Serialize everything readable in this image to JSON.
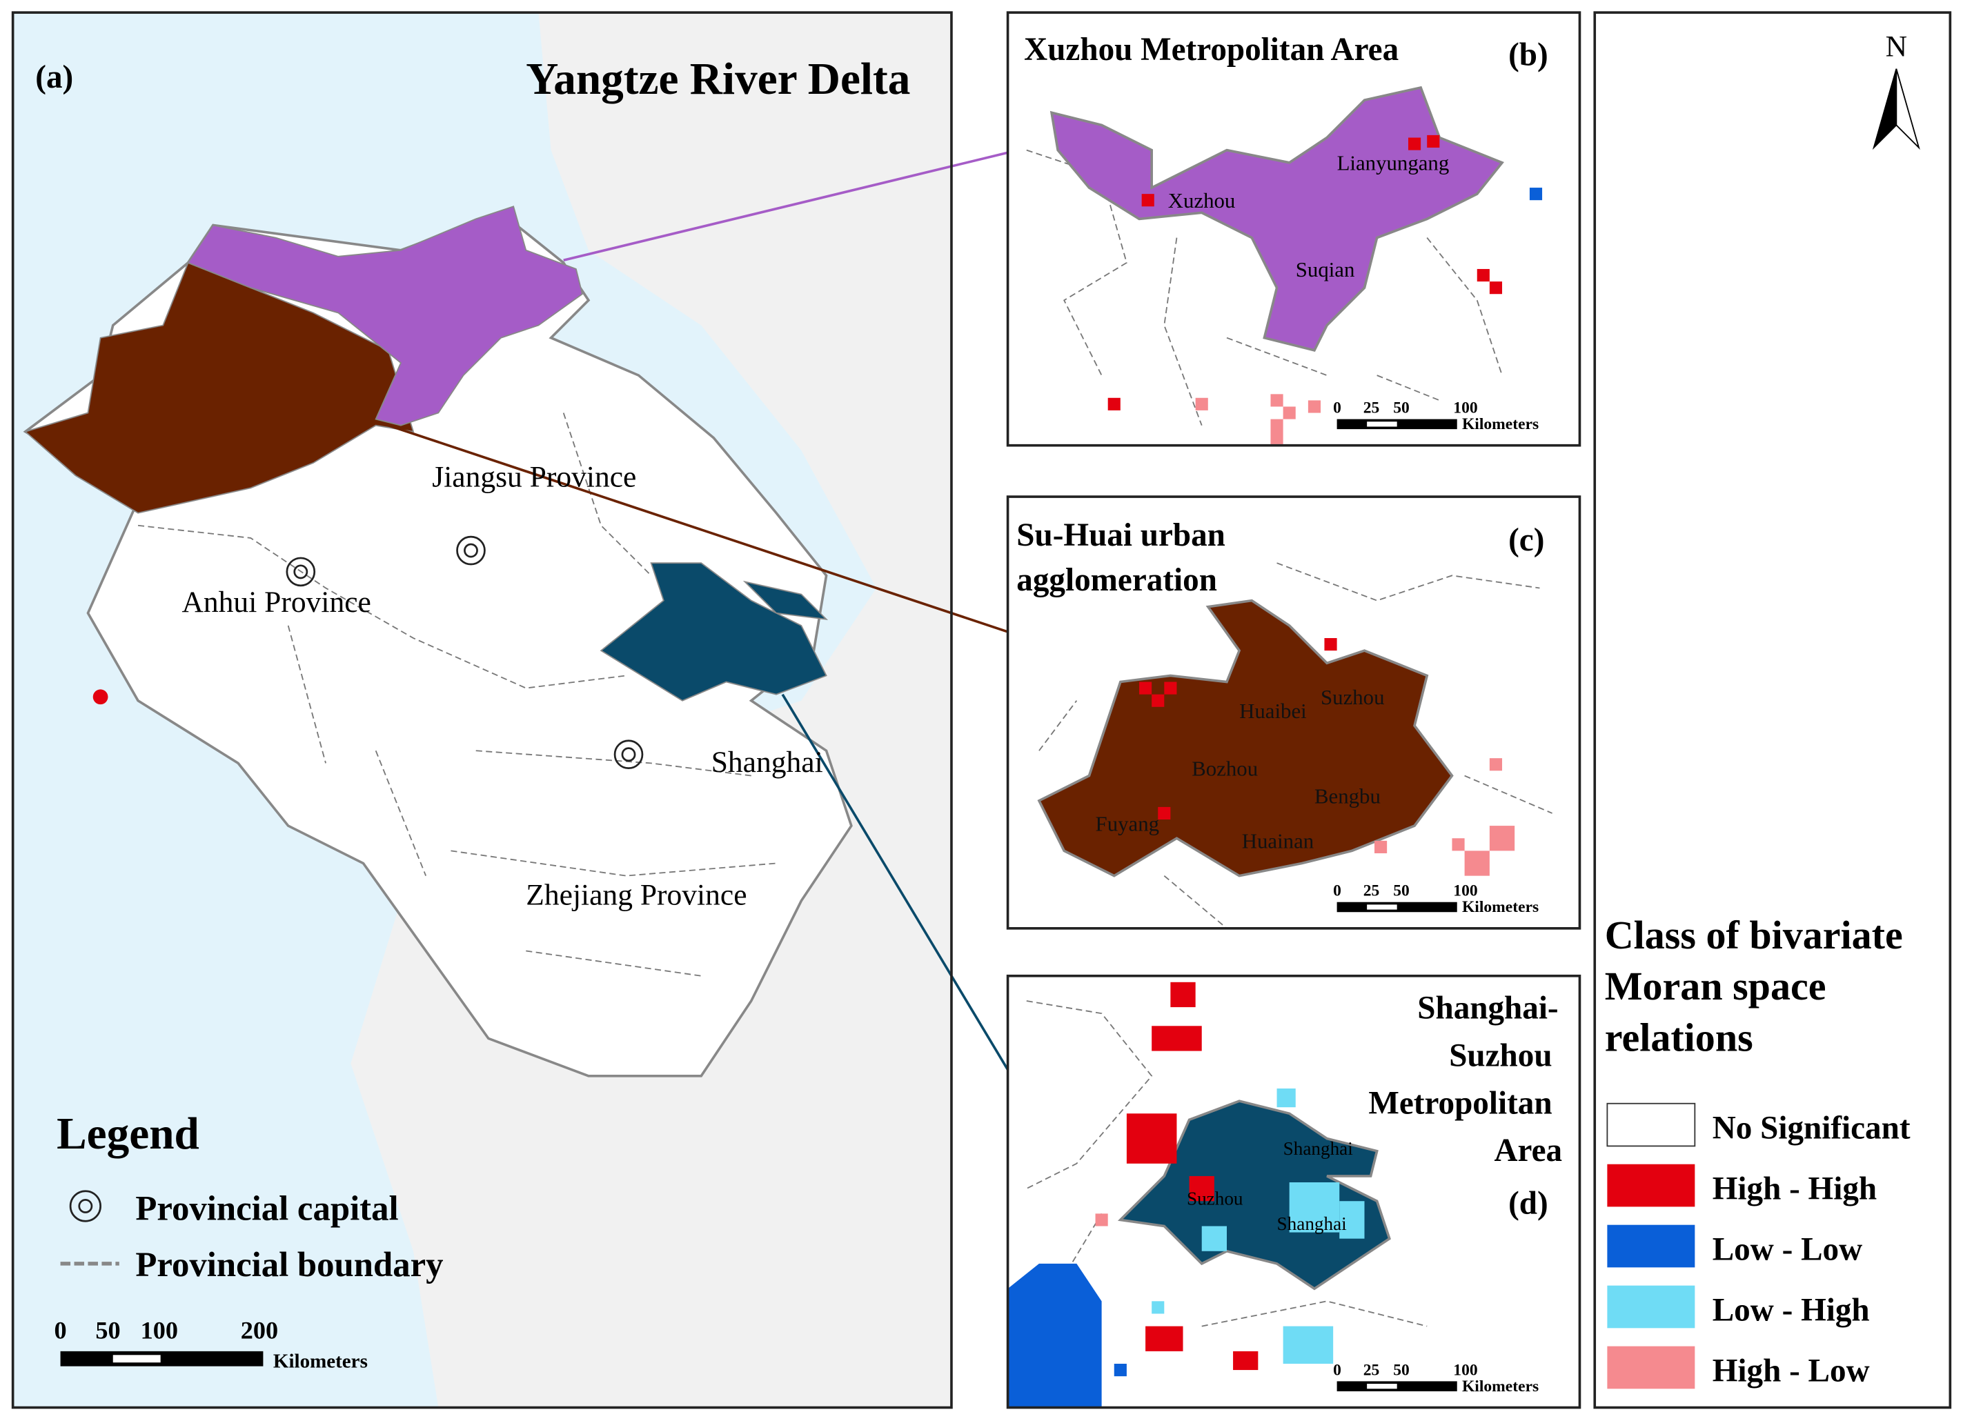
{
  "panel_a": {
    "label": "(a)",
    "title": "Yangtze River Delta",
    "places": [
      "Jiangsu Province",
      "Anhui Province",
      "Shanghai",
      "Zhejiang Province"
    ],
    "legend": {
      "title": "Legend",
      "items": [
        "Provincial capital",
        "Provincial boundary"
      ]
    },
    "scale": {
      "ticks": [
        "0",
        "50",
        "100",
        "200"
      ],
      "unit": "Kilometers"
    }
  },
  "panel_b": {
    "title": "Xuzhou Metropolitan Area",
    "label": "(b)",
    "places": [
      "Lianyungang",
      "Xuzhou",
      "Suqian"
    ],
    "scale": {
      "ticks": [
        "0",
        "25",
        "50",
        "100"
      ],
      "unit": "Kilometers"
    }
  },
  "panel_c": {
    "title_lines": [
      "Su-Huai urban",
      "agglomeration"
    ],
    "label": "(c)",
    "places": [
      "Huaibei",
      "Suzhou",
      "Bozhou",
      "Bengbu",
      "Fuyang",
      "Huainan"
    ],
    "scale": {
      "ticks": [
        "0",
        "25",
        "50",
        "100"
      ],
      "unit": "Kilometers"
    }
  },
  "panel_d": {
    "title_lines": [
      "Shanghai-",
      "Suzhou",
      "Metropolitan",
      "Area"
    ],
    "label": "(d)",
    "places": [
      "Shanghai",
      "Suzhou",
      "Shanghai"
    ],
    "scale": {
      "ticks": [
        "0",
        "25",
        "50",
        "100"
      ],
      "unit": "Kilometers"
    }
  },
  "north": "N",
  "class_legend": {
    "title_lines": [
      "Class of bivariate",
      "Moran space",
      "relations"
    ],
    "classes": [
      {
        "name": "No Significant",
        "color": "#ffffff"
      },
      {
        "name": "High - High",
        "color": "#e3000f"
      },
      {
        "name": "Low - Low",
        "color": "#0a5fd8"
      },
      {
        "name": "Low - High",
        "color": "#6fdcf5"
      },
      {
        "name": "High - Low",
        "color": "#f58a8f"
      }
    ]
  }
}
